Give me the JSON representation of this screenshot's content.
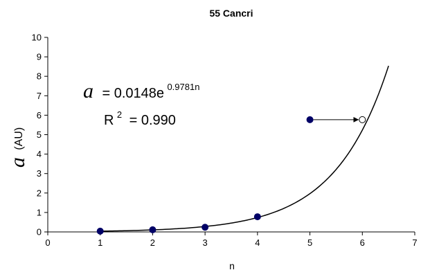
{
  "chart_data": {
    "type": "scatter",
    "title": "55 Cancri",
    "xlabel": "n",
    "ylabel_symbol": "a",
    "ylabel_unit": "(AU)",
    "xlim": [
      0,
      7
    ],
    "ylim": [
      0,
      10
    ],
    "xticks": [
      "0",
      "1",
      "2",
      "3",
      "4",
      "5",
      "6",
      "7"
    ],
    "yticks": [
      "0",
      "1",
      "2",
      "3",
      "4",
      "5",
      "6",
      "7",
      "8",
      "9",
      "10"
    ],
    "grid": false,
    "series": [
      {
        "marker": "filled-circle",
        "color": "#000066",
        "points": [
          {
            "x": 1,
            "y": 0.04
          },
          {
            "x": 2,
            "y": 0.11
          },
          {
            "x": 3,
            "y": 0.24
          },
          {
            "x": 4,
            "y": 0.78
          },
          {
            "x": 5,
            "y": 5.77
          }
        ]
      },
      {
        "marker": "open-circle",
        "color": "#000000",
        "points": [
          {
            "x": 6,
            "y": 5.77
          }
        ]
      }
    ],
    "fit": {
      "type": "exponential",
      "a": 0.0148,
      "b": 0.9781,
      "x_range": [
        1,
        6.5
      ]
    },
    "arrow": {
      "from": {
        "x": 5,
        "y": 5.77
      },
      "to": {
        "x": 6,
        "y": 5.77
      }
    },
    "annotation": {
      "eq_symbol": "a",
      "eq_text": "= 0.0148e",
      "eq_exponent": "0.9781n",
      "r2_text": "R",
      "r2_exponent": "2",
      "r2_value": "= 0.990"
    }
  }
}
